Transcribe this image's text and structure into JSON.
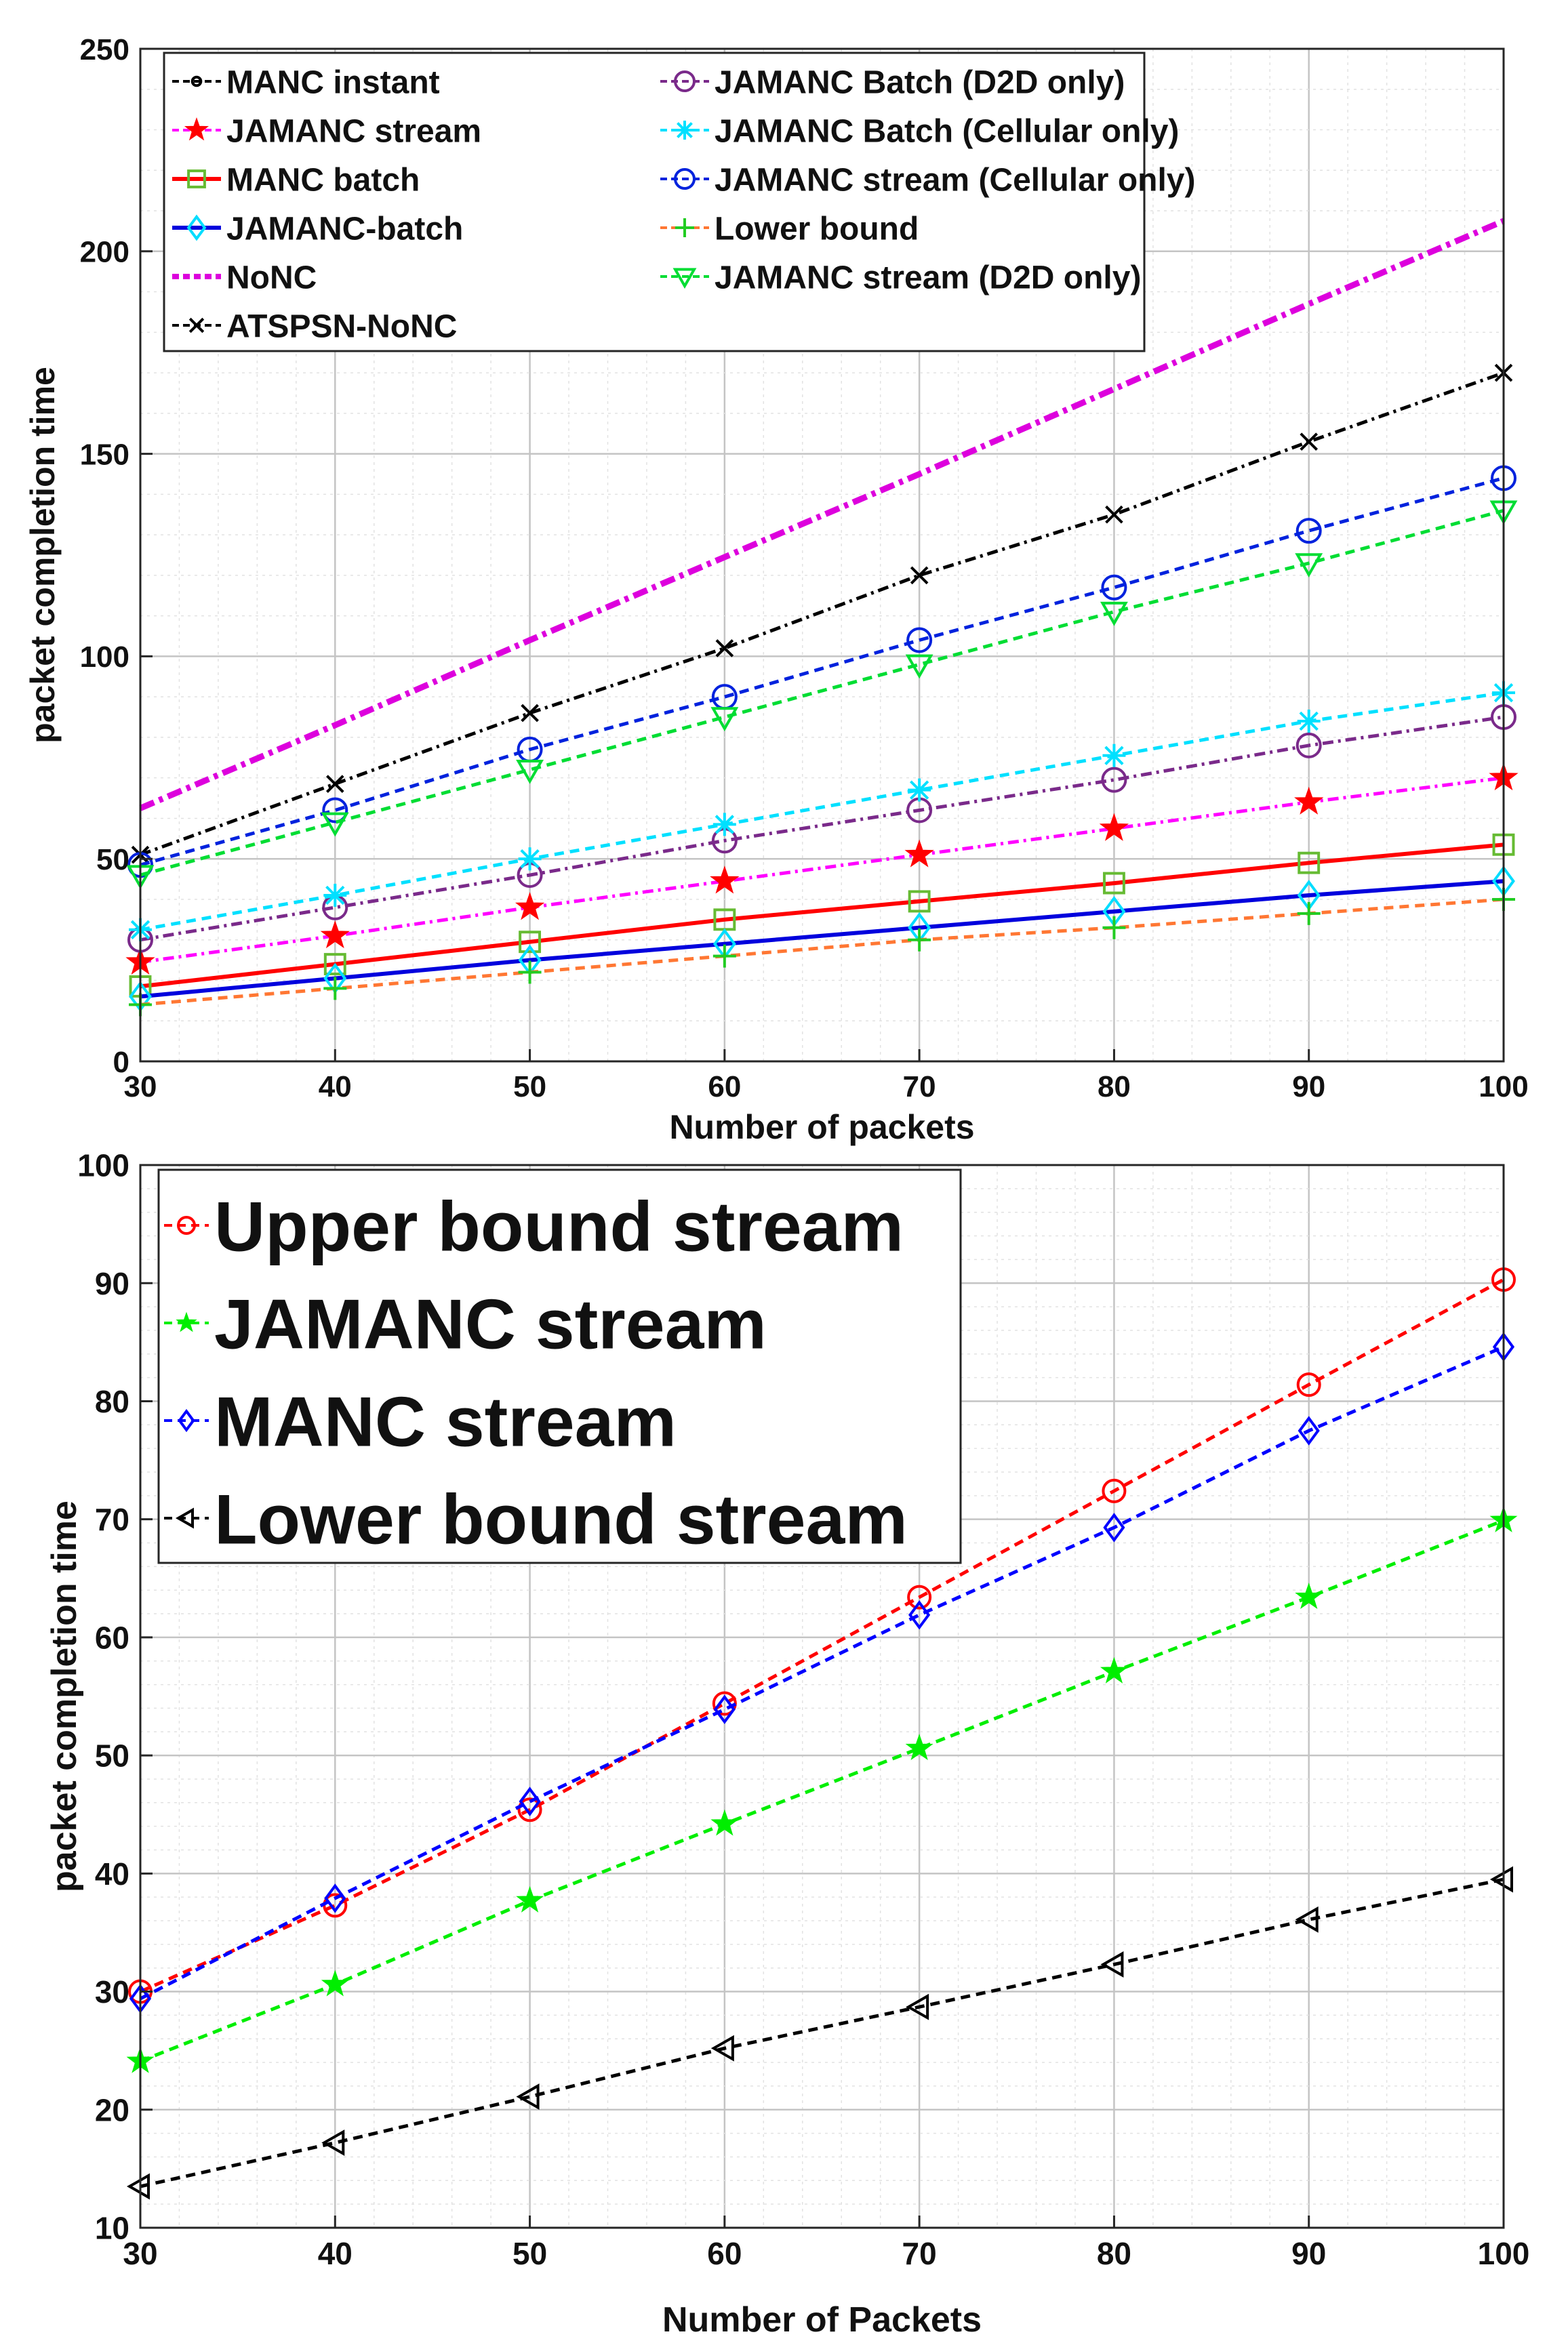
{
  "chart_data": [
    {
      "type": "line",
      "title": "",
      "xlabel": "Number of packets",
      "ylabel": "packet completion time",
      "xlim": [
        30,
        100
      ],
      "ylim": [
        0,
        250
      ],
      "xticks": [
        30,
        40,
        50,
        60,
        70,
        80,
        90,
        100
      ],
      "yticks": [
        0,
        50,
        100,
        150,
        200,
        250
      ],
      "grid": true,
      "legend_position": "top-left",
      "legend_columns": 2,
      "x": [
        30,
        40,
        50,
        60,
        70,
        80,
        90,
        100
      ],
      "series": [
        {
          "name": "MANC instant",
          "color": "#000000",
          "dash": "dashed",
          "marker": "circle-small",
          "values": [
            null,
            null,
            null,
            null,
            null,
            null,
            null,
            null
          ]
        },
        {
          "name": "JAMANC stream",
          "color": "#ff00ff",
          "marker_color": "#ff0000",
          "dash": "dashdot",
          "marker": "star",
          "values": [
            24.5,
            31,
            38,
            44.5,
            51,
            57.5,
            64,
            70
          ]
        },
        {
          "name": "MANC batch",
          "color": "#ff0000",
          "marker_color": "#66bb33",
          "dash": "solid",
          "marker": "square",
          "values": [
            18.5,
            24,
            29.5,
            35,
            39.5,
            44,
            49,
            53.5
          ]
        },
        {
          "name": "JAMANC-batch",
          "color": "#0000dd",
          "marker_color": "#00ddff",
          "dash": "solid",
          "marker": "diamond",
          "values": [
            16,
            20.5,
            25,
            29,
            33,
            37,
            41,
            44.5
          ]
        },
        {
          "name": "NoNC",
          "color": "#dd00dd",
          "dash": "dashdot-thick",
          "marker": "none",
          "values": [
            62.5,
            83,
            104,
            124.5,
            145,
            166,
            187,
            207.5
          ]
        },
        {
          "name": "ATSPSN-NoNC",
          "color": "#000000",
          "dash": "dashdot",
          "marker": "x",
          "values": [
            51,
            68.5,
            86,
            102,
            120,
            135,
            153,
            170
          ]
        },
        {
          "name": "JAMANC Batch (D2D only)",
          "color": "#7a2a8a",
          "dash": "dashdot",
          "marker": "circle",
          "values": [
            30,
            38,
            46,
            54.5,
            62,
            69.5,
            78,
            85
          ]
        },
        {
          "name": "JAMANC Batch (Cellular only)",
          "color": "#00e0ff",
          "dash": "dashed",
          "marker": "asterisk",
          "values": [
            32.5,
            41,
            50,
            58.5,
            67,
            75.5,
            84,
            91
          ]
        },
        {
          "name": "JAMANC stream (Cellular only)",
          "color": "#0022dd",
          "dash": "dashed",
          "marker": "circle",
          "values": [
            48.5,
            62,
            77,
            90,
            104,
            117,
            131,
            144
          ]
        },
        {
          "name": "Lower bound",
          "color": "#ff7733",
          "marker_color": "#22cc22",
          "dash": "dashed",
          "marker": "plus",
          "values": [
            14,
            18,
            22,
            26,
            30,
            33,
            36.5,
            40
          ]
        },
        {
          "name": "JAMANC stream (D2D only)",
          "color": "#00dd33",
          "dash": "dashed",
          "marker": "triangle-down",
          "values": [
            46,
            59,
            72,
            85,
            98,
            111,
            123,
            136
          ]
        }
      ]
    },
    {
      "type": "line",
      "title": "",
      "xlabel": "Number of Packets",
      "ylabel": "packet completion time",
      "xlim": [
        30,
        100
      ],
      "ylim": [
        10,
        100
      ],
      "xticks": [
        30,
        40,
        50,
        60,
        70,
        80,
        90,
        100
      ],
      "yticks": [
        10,
        20,
        30,
        40,
        50,
        60,
        70,
        80,
        90,
        100
      ],
      "grid": true,
      "legend_position": "top-left",
      "legend_columns": 1,
      "x": [
        30,
        40,
        50,
        60,
        70,
        80,
        90,
        100
      ],
      "series": [
        {
          "name": "Upper bound stream",
          "color": "#ff0000",
          "dash": "dashed",
          "marker": "circle",
          "values": [
            30,
            37.3,
            45.4,
            54.4,
            63.4,
            72.4,
            81.4,
            90.3
          ]
        },
        {
          "name": "JAMANC stream",
          "color": "#00ee00",
          "dash": "dashed",
          "marker": "star",
          "values": [
            24.1,
            30.6,
            37.7,
            44.2,
            50.6,
            57.1,
            63.4,
            69.9
          ]
        },
        {
          "name": "MANC stream",
          "color": "#0000ff",
          "dash": "dashed",
          "marker": "diamond",
          "values": [
            29.4,
            37.9,
            46.1,
            53.9,
            61.9,
            69.3,
            77.5,
            84.6
          ]
        },
        {
          "name": "Lower bound stream",
          "color": "#000000",
          "dash": "dashed",
          "marker": "triangle-left",
          "values": [
            13.5,
            17.2,
            21.1,
            25.2,
            28.7,
            32.3,
            36.1,
            39.5
          ]
        }
      ]
    }
  ]
}
